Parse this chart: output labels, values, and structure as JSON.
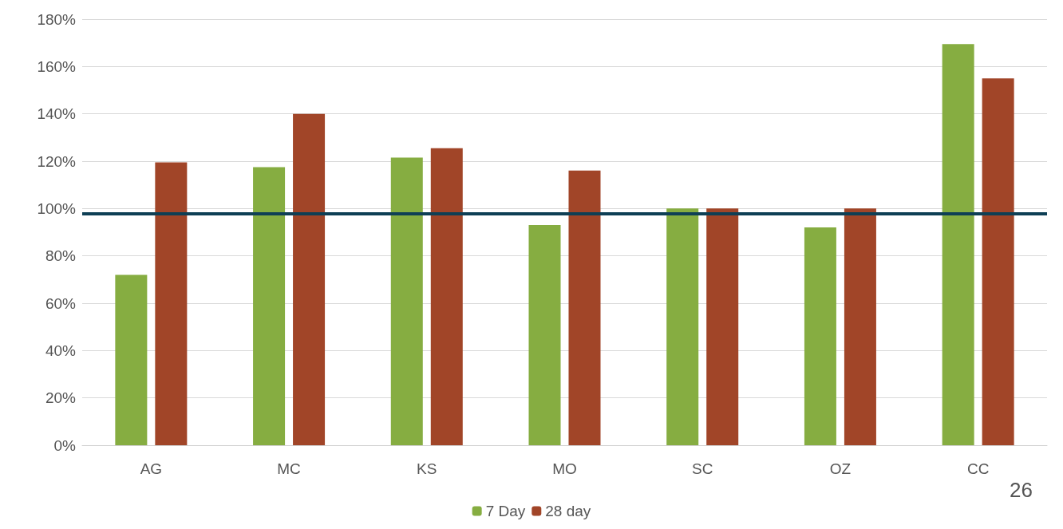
{
  "chart_data": {
    "type": "bar",
    "categories": [
      "AG",
      "MC",
      "KS",
      "MO",
      "SC",
      "OZ",
      "CC"
    ],
    "series": [
      {
        "name": "7 Day",
        "color": "#86ad41",
        "values": [
          72,
          117.5,
          121.5,
          93,
          100,
          92,
          169.5
        ]
      },
      {
        "name": "28 day",
        "color": "#a14528",
        "values": [
          119.5,
          140,
          125.5,
          116,
          100,
          100,
          155
        ]
      }
    ],
    "ylim": [
      0,
      180
    ],
    "yticks": [
      {
        "value": 0,
        "label": "0%"
      },
      {
        "value": 20,
        "label": "20%"
      },
      {
        "value": 40,
        "label": "40%"
      },
      {
        "value": 60,
        "label": "60%"
      },
      {
        "value": 80,
        "label": "80%"
      },
      {
        "value": 100,
        "label": "100%"
      },
      {
        "value": 120,
        "label": "120%"
      },
      {
        "value": 140,
        "label": "140%"
      },
      {
        "value": 160,
        "label": "160%"
      },
      {
        "value": 180,
        "label": "180%"
      }
    ],
    "ref_lines": [
      {
        "axis": "y",
        "value": 98,
        "color": "#0e3f55"
      }
    ],
    "annotations": [
      "26"
    ],
    "grid": "y",
    "legend": "bottom"
  }
}
